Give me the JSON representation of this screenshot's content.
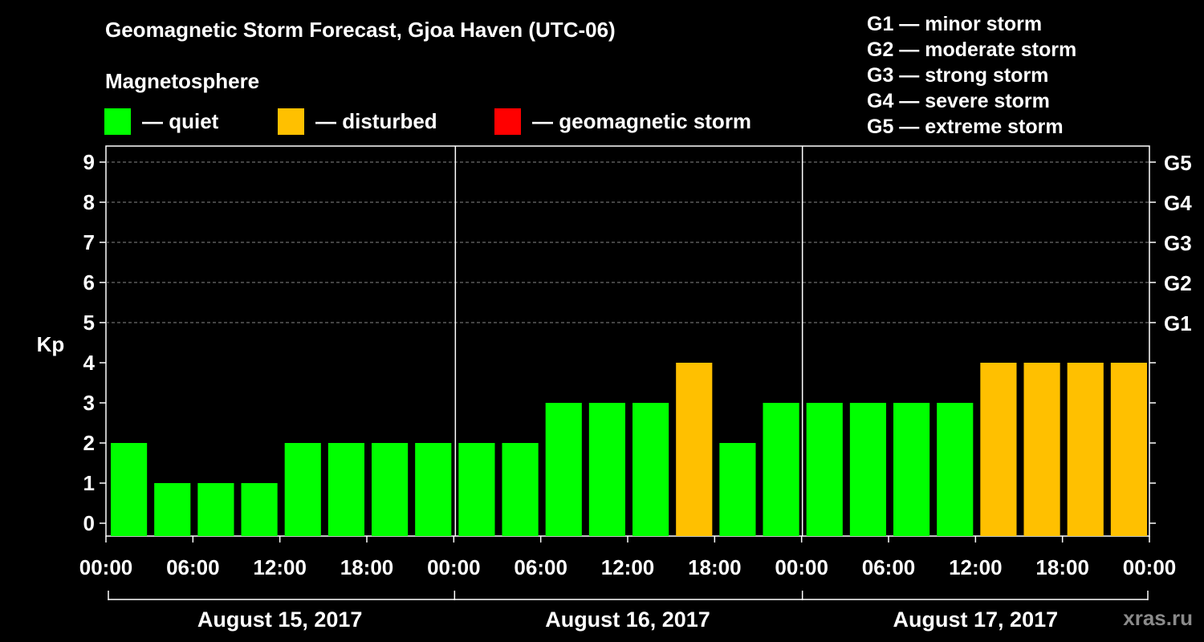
{
  "header": {
    "title": "Geomagnetic Storm Forecast, Gjoa Haven (UTC-06)",
    "subtitle": "Magnetosphere"
  },
  "legend": [
    {
      "label": "— quiet",
      "color": "#00ff00"
    },
    {
      "label": "— disturbed",
      "color": "#ffc000"
    },
    {
      "label": "— geomagnetic storm",
      "color": "#ff0000"
    }
  ],
  "g_scale": [
    "G1 — minor storm",
    "G2 — moderate storm",
    "G3 — strong storm",
    "G4 — severe storm",
    "G5 — extreme storm"
  ],
  "watermark": "xras.ru",
  "chart_data": {
    "type": "bar",
    "ylabel": "Kp",
    "ylim": [
      0,
      9
    ],
    "yticks": [
      "0",
      "1",
      "2",
      "3",
      "4",
      "5",
      "6",
      "7",
      "8",
      "9"
    ],
    "right_ticks": [
      {
        "value": 5,
        "label": "G1"
      },
      {
        "value": 6,
        "label": "G2"
      },
      {
        "value": 7,
        "label": "G3"
      },
      {
        "value": 8,
        "label": "G4"
      },
      {
        "value": 9,
        "label": "G5"
      }
    ],
    "xticks": [
      "00:00",
      "06:00",
      "12:00",
      "18:00",
      "00:00",
      "06:00",
      "12:00",
      "18:00",
      "00:00",
      "06:00",
      "12:00",
      "18:00",
      "00:00"
    ],
    "days": [
      "August 15, 2017",
      "August 16, 2017",
      "August 17, 2017"
    ],
    "interval_hours": 3,
    "values": [
      2,
      1,
      1,
      1,
      2,
      2,
      2,
      2,
      2,
      2,
      3,
      3,
      3,
      4,
      2,
      3,
      3,
      3,
      3,
      3,
      4,
      4,
      4,
      4
    ],
    "colors": {
      "quiet": "#00ff00",
      "disturbed": "#ffc000",
      "storm": "#ff0000"
    },
    "grid": true
  }
}
